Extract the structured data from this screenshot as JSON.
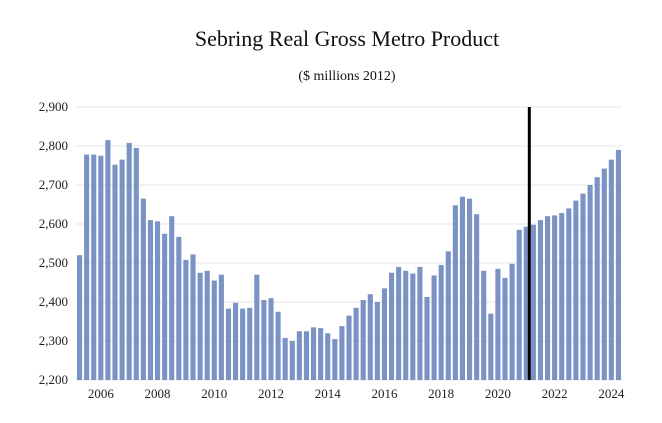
{
  "chart_data": {
    "type": "bar",
    "title": "Sebring Real Gross Metro Product",
    "subtitle": "($ millions 2012)",
    "xlabel": "",
    "ylabel": "",
    "ylim": [
      2200,
      2900
    ],
    "yticks": [
      "2,200",
      "2,300",
      "2,400",
      "2,500",
      "2,600",
      "2,700",
      "2,800",
      "2,900"
    ],
    "ytick_values": [
      2200,
      2300,
      2400,
      2500,
      2600,
      2700,
      2800,
      2900
    ],
    "xticks": [
      "2006",
      "2008",
      "2010",
      "2012",
      "2014",
      "2016",
      "2018",
      "2020",
      "2022",
      "2024"
    ],
    "xtick_values": [
      2006,
      2008,
      2010,
      2012,
      2014,
      2016,
      2018,
      2020,
      2022,
      2024
    ],
    "x_start": 2005.25,
    "x_step": 0.25,
    "grid": true,
    "vertical_marker_x": 2021.25,
    "bar_color": "#7b92c4",
    "marker_color": "#000000",
    "values": [
      2520,
      2778,
      2778,
      2775,
      2815,
      2752,
      2765,
      2808,
      2795,
      2665,
      2610,
      2607,
      2575,
      2620,
      2567,
      2508,
      2522,
      2475,
      2480,
      2455,
      2470,
      2383,
      2398,
      2383,
      2385,
      2470,
      2405,
      2410,
      2375,
      2308,
      2300,
      2325,
      2325,
      2335,
      2333,
      2320,
      2305,
      2338,
      2365,
      2385,
      2405,
      2420,
      2400,
      2435,
      2475,
      2490,
      2480,
      2473,
      2490,
      2413,
      2468,
      2495,
      2530,
      2648,
      2670,
      2665,
      2625,
      2480,
      2370,
      2485,
      2462,
      2498,
      2585,
      2593,
      2598,
      2610,
      2620,
      2622,
      2628,
      2640,
      2660,
      2678,
      2700,
      2720,
      2742,
      2765,
      2790
    ]
  }
}
